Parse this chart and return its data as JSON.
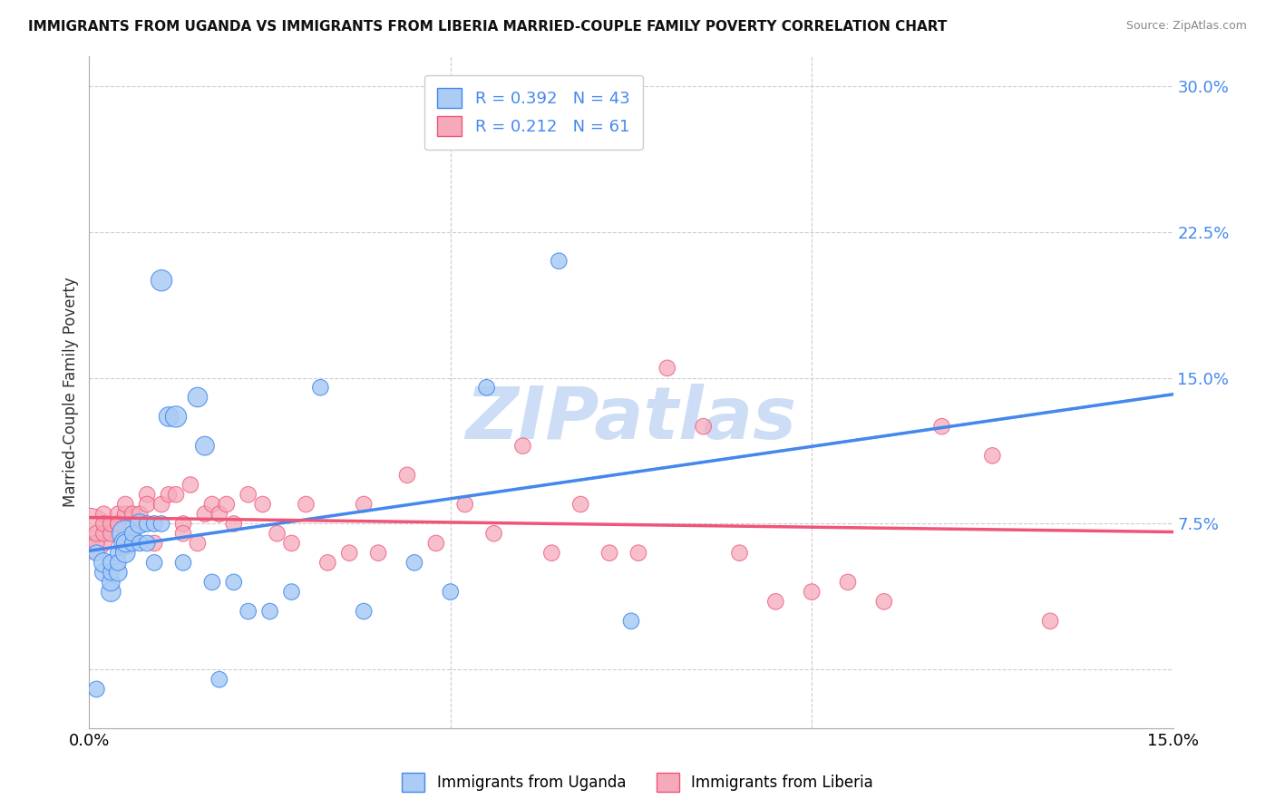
{
  "title": "IMMIGRANTS FROM UGANDA VS IMMIGRANTS FROM LIBERIA MARRIED-COUPLE FAMILY POVERTY CORRELATION CHART",
  "source": "Source: ZipAtlas.com",
  "ylabel": "Married-Couple Family Poverty",
  "xlim": [
    0.0,
    0.15
  ],
  "ylim": [
    -0.03,
    0.315
  ],
  "xticks": [
    0.0,
    0.05,
    0.1,
    0.15
  ],
  "xtick_labels": [
    "0.0%",
    "",
    "",
    "15.0%"
  ],
  "ytick_labels_right": [
    "30.0%",
    "22.5%",
    "15.0%",
    "7.5%",
    ""
  ],
  "ytick_vals_right": [
    0.3,
    0.225,
    0.15,
    0.075,
    0.0
  ],
  "uganda_color": "#aaccf5",
  "liberia_color": "#f5aabb",
  "uganda_line_color": "#4488ee",
  "liberia_line_color": "#ee5577",
  "legend_uganda_R": "0.392",
  "legend_uganda_N": "43",
  "legend_liberia_R": "0.212",
  "legend_liberia_N": "61",
  "watermark": "ZIPatlas",
  "watermark_color": "#ccddf5",
  "background_color": "#ffffff",
  "grid_color": "#cccccc",
  "uganda_x": [
    0.001,
    0.001,
    0.002,
    0.002,
    0.003,
    0.003,
    0.003,
    0.003,
    0.004,
    0.004,
    0.004,
    0.005,
    0.005,
    0.005,
    0.005,
    0.006,
    0.006,
    0.007,
    0.007,
    0.008,
    0.008,
    0.009,
    0.009,
    0.01,
    0.01,
    0.011,
    0.012,
    0.013,
    0.015,
    0.016,
    0.017,
    0.018,
    0.02,
    0.022,
    0.025,
    0.028,
    0.032,
    0.038,
    0.045,
    0.05,
    0.055,
    0.065,
    0.075
  ],
  "uganda_y": [
    0.06,
    -0.01,
    0.05,
    0.055,
    0.04,
    0.045,
    0.05,
    0.055,
    0.06,
    0.05,
    0.055,
    0.07,
    0.065,
    0.06,
    0.065,
    0.065,
    0.07,
    0.075,
    0.065,
    0.075,
    0.065,
    0.075,
    0.055,
    0.2,
    0.075,
    0.13,
    0.13,
    0.055,
    0.14,
    0.115,
    0.045,
    -0.005,
    0.045,
    0.03,
    0.03,
    0.04,
    0.145,
    0.03,
    0.055,
    0.04,
    0.145,
    0.21,
    0.025
  ],
  "uganda_size": [
    20,
    20,
    25,
    30,
    30,
    25,
    20,
    20,
    20,
    25,
    20,
    55,
    40,
    30,
    25,
    20,
    20,
    30,
    20,
    20,
    20,
    20,
    20,
    35,
    20,
    30,
    35,
    20,
    30,
    28,
    20,
    20,
    20,
    20,
    20,
    20,
    20,
    20,
    20,
    20,
    20,
    20,
    20
  ],
  "liberia_x": [
    0.0,
    0.001,
    0.001,
    0.002,
    0.002,
    0.002,
    0.003,
    0.003,
    0.004,
    0.004,
    0.004,
    0.005,
    0.005,
    0.005,
    0.006,
    0.006,
    0.007,
    0.007,
    0.008,
    0.008,
    0.009,
    0.01,
    0.011,
    0.012,
    0.013,
    0.013,
    0.014,
    0.015,
    0.016,
    0.017,
    0.018,
    0.019,
    0.02,
    0.022,
    0.024,
    0.026,
    0.028,
    0.03,
    0.033,
    0.036,
    0.038,
    0.04,
    0.044,
    0.048,
    0.052,
    0.056,
    0.06,
    0.064,
    0.068,
    0.072,
    0.076,
    0.08,
    0.085,
    0.09,
    0.095,
    0.1,
    0.105,
    0.11,
    0.118,
    0.125,
    0.133
  ],
  "liberia_y": [
    0.07,
    0.065,
    0.07,
    0.07,
    0.08,
    0.075,
    0.07,
    0.075,
    0.075,
    0.08,
    0.075,
    0.065,
    0.08,
    0.085,
    0.07,
    0.08,
    0.08,
    0.075,
    0.09,
    0.085,
    0.065,
    0.085,
    0.09,
    0.09,
    0.075,
    0.07,
    0.095,
    0.065,
    0.08,
    0.085,
    0.08,
    0.085,
    0.075,
    0.09,
    0.085,
    0.07,
    0.065,
    0.085,
    0.055,
    0.06,
    0.085,
    0.06,
    0.1,
    0.065,
    0.085,
    0.07,
    0.115,
    0.06,
    0.085,
    0.06,
    0.06,
    0.155,
    0.125,
    0.06,
    0.035,
    0.04,
    0.045,
    0.035,
    0.125,
    0.11,
    0.025
  ],
  "liberia_size": [
    200,
    20,
    20,
    20,
    20,
    20,
    20,
    20,
    20,
    20,
    20,
    20,
    20,
    20,
    20,
    20,
    20,
    20,
    20,
    20,
    20,
    20,
    20,
    20,
    20,
    20,
    20,
    20,
    20,
    20,
    20,
    20,
    20,
    20,
    20,
    20,
    20,
    20,
    20,
    20,
    20,
    20,
    20,
    20,
    20,
    20,
    20,
    20,
    20,
    20,
    20,
    20,
    20,
    20,
    20,
    20,
    20,
    20,
    20,
    20,
    20
  ]
}
